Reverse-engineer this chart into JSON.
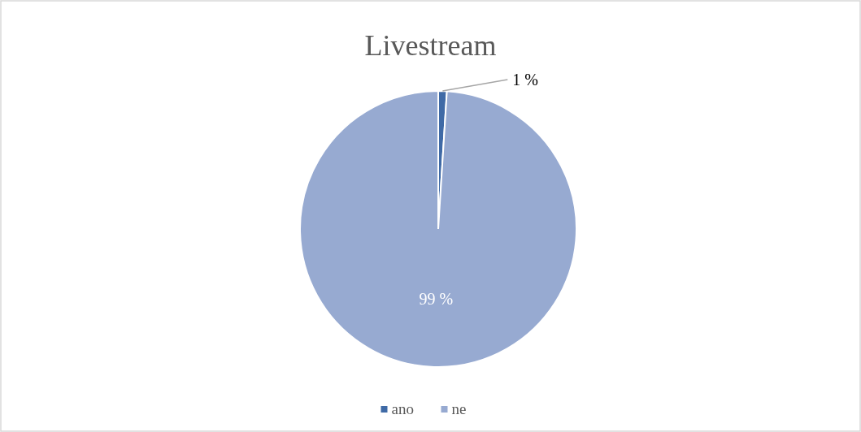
{
  "chart_data": {
    "type": "pie",
    "title": "Livestream",
    "categories": [
      "ano",
      "ne"
    ],
    "values": [
      1,
      99
    ],
    "colors": [
      "#3f6aa6",
      "#97aad1"
    ],
    "value_labels": [
      "1 %",
      "99 %"
    ],
    "legend": "bottom"
  }
}
